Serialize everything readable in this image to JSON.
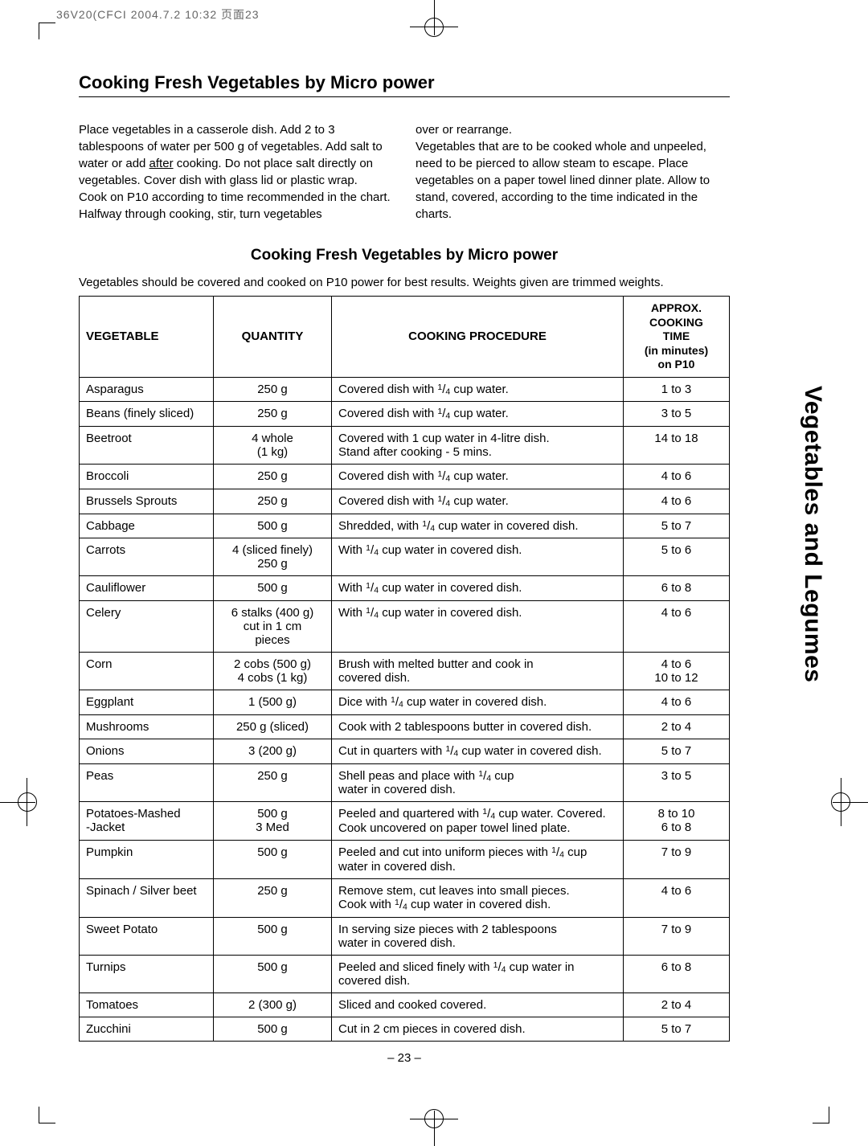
{
  "print_header": "36V20(CFCI  2004.7.2  10:32  页面23",
  "heading": "Cooking Fresh Vegetables by Micro power",
  "intro_left_html": "Place vegetables in a casserole dish. Add 2 to 3 tablespoons of water per 500 g of vegetables. Add salt to water or add <u>after</u> cooking. Do not place salt directly on vegetables. Cover dish with glass lid or plastic wrap.<br>Cook on P10 according to time recommended in the chart. Halfway through cooking, stir, turn vegetables",
  "intro_right_html": "over or rearrange.<br>Vegetables that are to be cooked whole and unpeeled, need to be pierced to allow steam to escape. Place vegetables on a paper towel lined dinner plate. Allow to stand, covered, according to the time indicated in the charts.",
  "subheading": "Cooking Fresh Vegetables by Micro power",
  "table_intro": "Vegetables should be covered and cooked on P10 power for best results. Weights given are trimmed weights.",
  "columns": {
    "veg": "VEGETABLE",
    "qty": "QUANTITY",
    "proc": "COOKING PROCEDURE",
    "time": "APPROX. COOKING TIME (in minutes) on P10"
  },
  "rows": [
    {
      "veg": "Asparagus",
      "qty": "250 g",
      "proc": "Covered dish with {q} cup water.",
      "time": "1 to 3"
    },
    {
      "veg": "Beans (finely sliced)",
      "qty": "250 g",
      "proc": "Covered dish with {q} cup water.",
      "time": "3 to 5"
    },
    {
      "veg": "Beetroot",
      "qty": "4 whole\n(1 kg)",
      "proc": "Covered with 1 cup water in 4-litre dish.\nStand after cooking - 5 mins.",
      "time": "14 to 18"
    },
    {
      "veg": "Broccoli",
      "qty": "250 g",
      "proc": "Covered dish with {q} cup water.",
      "time": "4 to 6"
    },
    {
      "veg": "Brussels Sprouts",
      "qty": "250 g",
      "proc": "Covered dish with {q} cup water.",
      "time": "4 to 6"
    },
    {
      "veg": "Cabbage",
      "qty": "500 g",
      "proc": "Shredded, with {q} cup water in covered dish.",
      "time": "5 to 7"
    },
    {
      "veg": "Carrots",
      "qty": "4 (sliced finely)\n250 g",
      "proc": "With {q} cup water in covered dish.",
      "time": "5 to 6"
    },
    {
      "veg": "Cauliflower",
      "qty": "500 g",
      "proc": "With {q} cup water in covered dish.",
      "time": "6 to 8"
    },
    {
      "veg": "Celery",
      "qty": "6 stalks (400 g)\ncut in 1 cm\npieces",
      "proc": "With {q} cup water in covered dish.",
      "time": "4 to 6"
    },
    {
      "veg": "Corn",
      "qty": "2 cobs (500 g)\n4 cobs (1 kg)",
      "proc": "Brush with melted butter and cook in\ncovered dish.",
      "time": "4 to 6\n10 to 12"
    },
    {
      "veg": "Eggplant",
      "qty": "1 (500 g)",
      "proc": "Dice with {q} cup water in covered dish.",
      "time": "4 to 6"
    },
    {
      "veg": "Mushrooms",
      "qty": "250 g (sliced)",
      "proc": "Cook with 2 tablespoons butter in covered dish.",
      "time": "2 to 4"
    },
    {
      "veg": "Onions",
      "qty": "3 (200 g)",
      "proc": "Cut in quarters with {q} cup water in covered dish.",
      "time": "5 to 7"
    },
    {
      "veg": "Peas",
      "qty": "250 g",
      "proc": "Shell peas and place with {q} cup\nwater in covered dish.",
      "time": "3 to 5"
    },
    {
      "veg": "Potatoes-Mashed\n-Jacket",
      "qty": "500 g\n3 Med",
      "proc": "Peeled and quartered with {q} cup water. Covered.\nCook uncovered on paper towel lined plate.",
      "time": "8 to 10\n6 to 8"
    },
    {
      "veg": "Pumpkin",
      "qty": "500 g",
      "proc": "Peeled and cut into uniform pieces with {q} cup\nwater in covered dish.",
      "time": "7 to 9"
    },
    {
      "veg": "Spinach / Silver beet",
      "qty": "250 g",
      "proc": "Remove stem, cut leaves into small pieces.\nCook with {q} cup water in covered dish.",
      "time": "4 to 6"
    },
    {
      "veg": "Sweet Potato",
      "qty": "500 g",
      "proc": "In serving size pieces with 2 tablespoons\nwater in covered dish.",
      "time": "7 to 9"
    },
    {
      "veg": "Turnips",
      "qty": "500 g",
      "proc": "Peeled and sliced finely with {q} cup water in\ncovered dish.",
      "time": "6 to 8"
    },
    {
      "veg": "Tomatoes",
      "qty": "2 (300 g)",
      "proc": "Sliced and cooked covered.",
      "time": "2 to 4"
    },
    {
      "veg": "Zucchini",
      "qty": "500 g",
      "proc": "Cut in 2 cm pieces in covered dish.",
      "time": "5 to 7"
    }
  ],
  "page_num": "– 23 –",
  "side_tab": "Vegetables and Legumes",
  "colors": {
    "text": "#000000",
    "bg": "#ffffff",
    "print_header": "#666666",
    "border": "#000000"
  },
  "fonts": {
    "body_family": "Arial, Helvetica, sans-serif",
    "body_size_pt": 11,
    "heading_size_pt": 16,
    "subheading_size_pt": 14,
    "side_tab_size_pt": 22
  }
}
